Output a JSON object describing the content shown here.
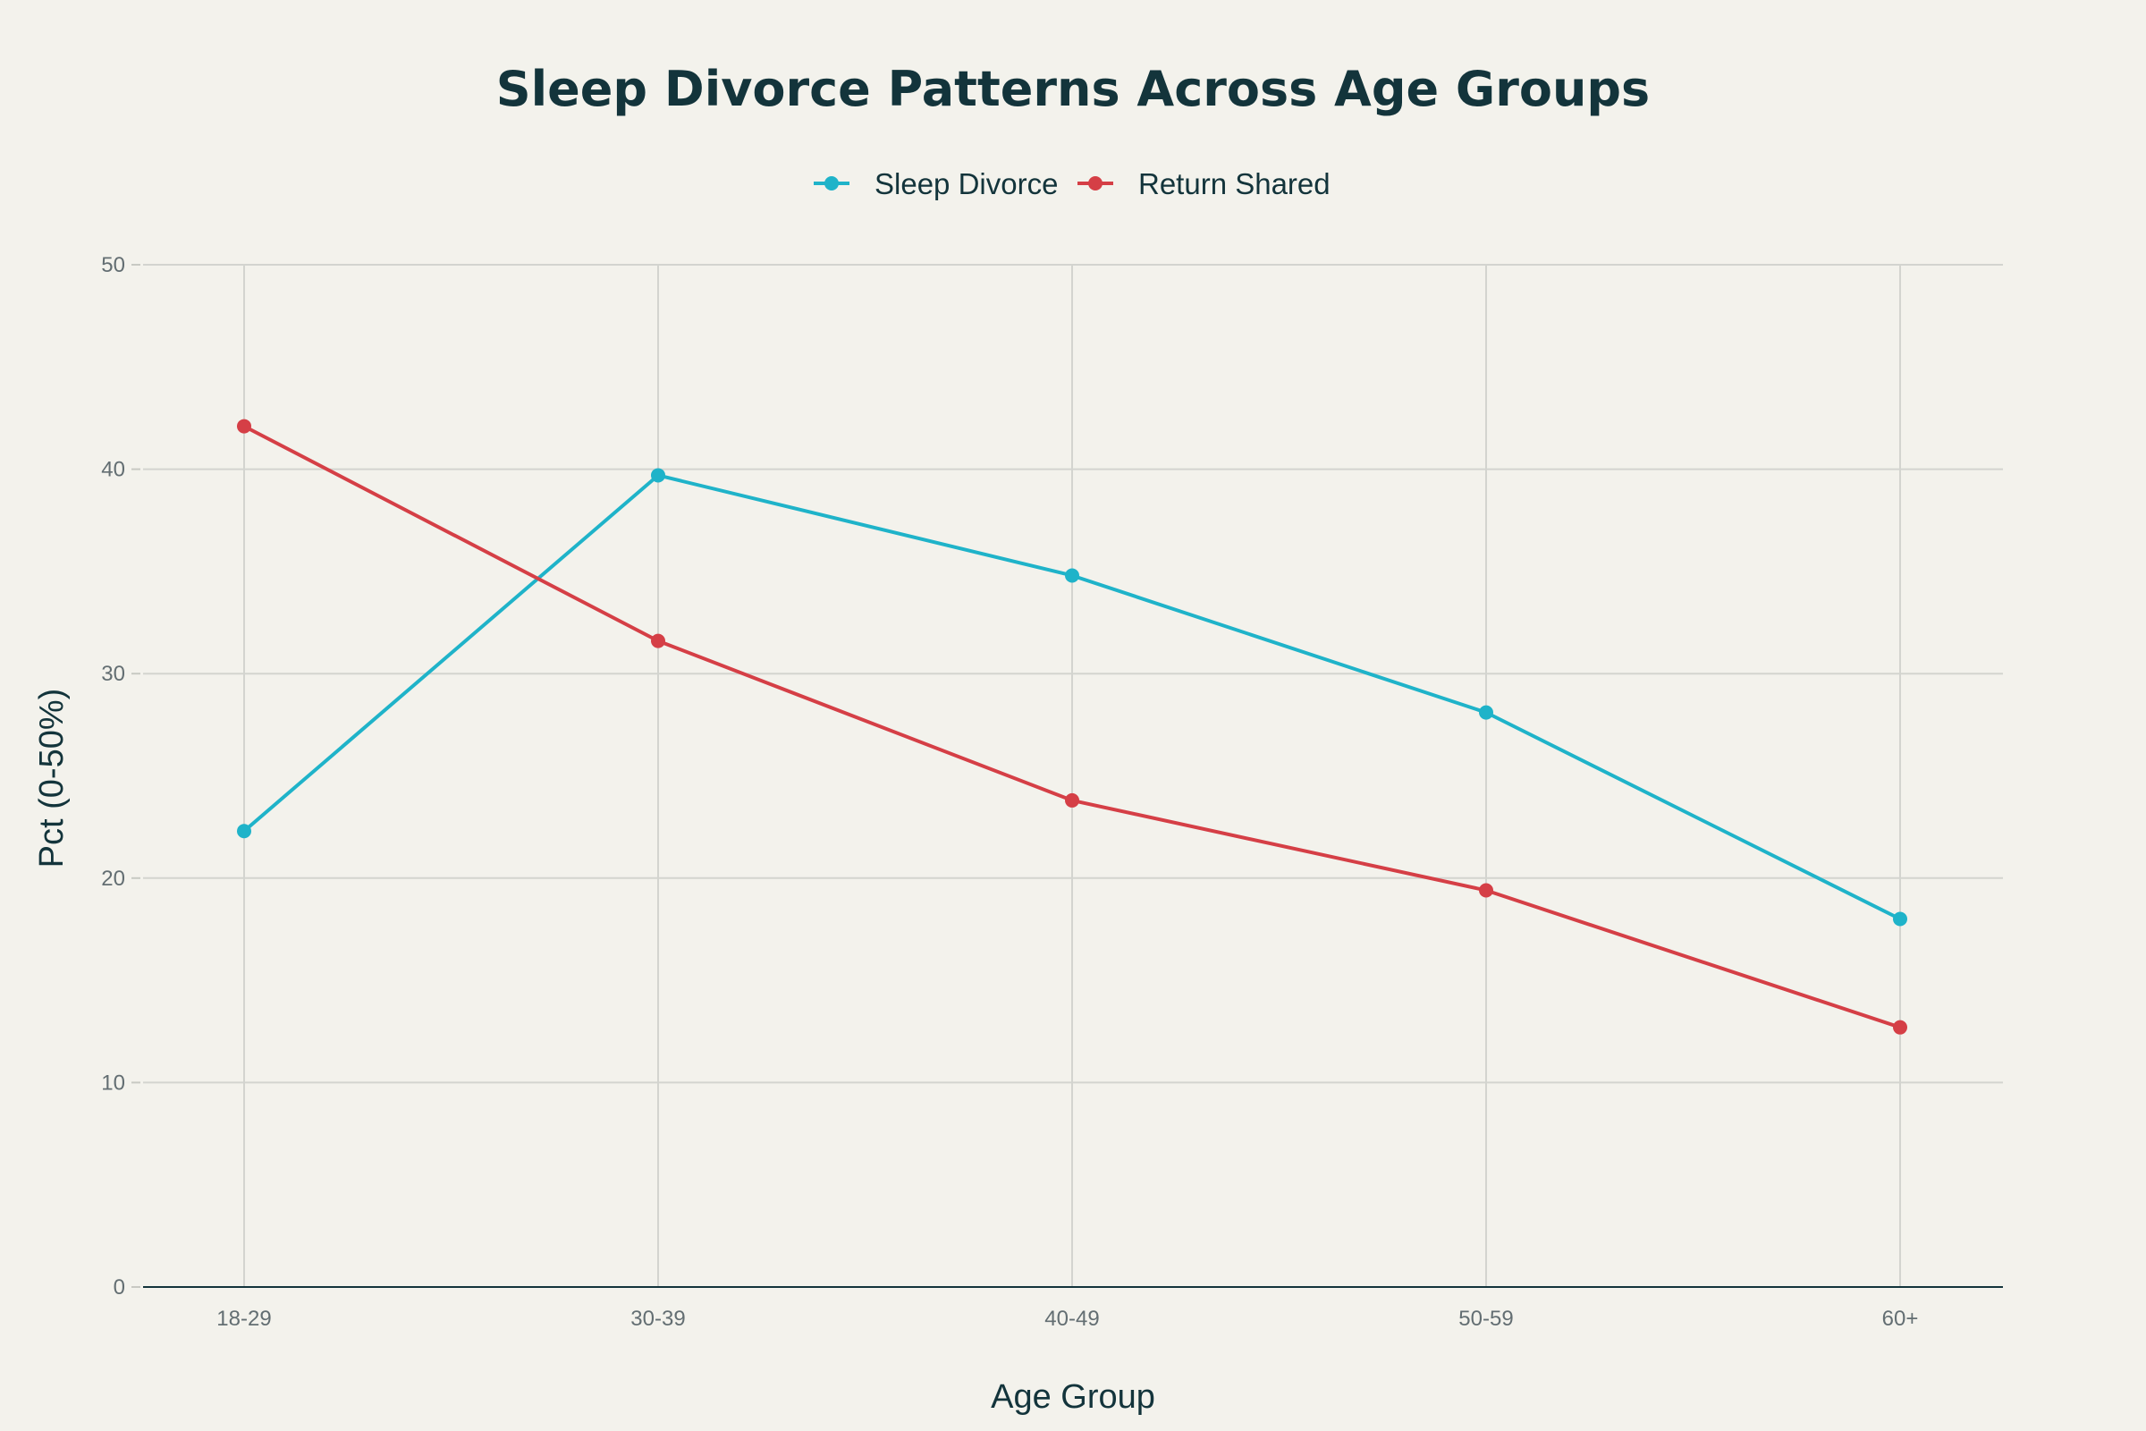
{
  "colors": {
    "background": "#f3f2ec",
    "sleep_divorce": "#1fb3c9",
    "return_shared": "#d53f46",
    "text": "#13343b",
    "tick": "#636e72",
    "grid": "#d3d4cf"
  },
  "chart_data": {
    "type": "line",
    "title": "Sleep Divorce Patterns Across Age Groups",
    "xlabel": "Age Group",
    "ylabel": "Pct (0-50%)",
    "categories": [
      "18-29",
      "30-39",
      "40-49",
      "50-59",
      "60+"
    ],
    "ylim": [
      0,
      50
    ],
    "yticks": [
      "0",
      "10",
      "20",
      "30",
      "40",
      "50"
    ],
    "grid": true,
    "legend_position": "top-center",
    "series": [
      {
        "name": "Sleep Divorce",
        "color": "#1fb3c9",
        "values": [
          22.3,
          39.7,
          34.8,
          28.1,
          18.0
        ]
      },
      {
        "name": "Return Shared",
        "color": "#d53f46",
        "values": [
          42.1,
          31.6,
          23.8,
          19.4,
          12.7
        ]
      }
    ]
  }
}
